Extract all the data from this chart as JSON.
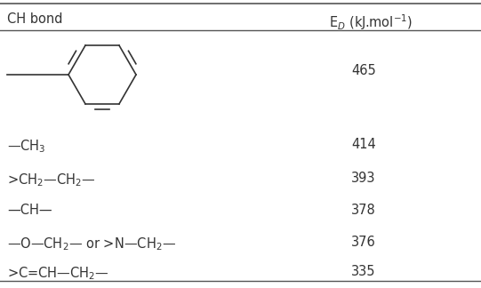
{
  "col1_header": "CH bond",
  "col2_header": "E$_{D}$ (kJ.mol$^{-1}$)",
  "rows": [
    {
      "label": "benzene_img",
      "value": "465"
    },
    {
      "label": "—CH$_{3}$",
      "value": "414"
    },
    {
      "label": ">CH$_{2}$—CH$_{2}$—",
      "value": "393"
    },
    {
      "label": "—CH—",
      "value": "378"
    },
    {
      "label": "—O—CH$_{2}$— or >N—CH$_{2}$—",
      "value": "376"
    },
    {
      "label": ">C=CH—CH$_{2}$—",
      "value": "335"
    }
  ],
  "line_color": "#555555",
  "bg_color": "#ffffff",
  "text_color": "#333333",
  "font_size": 10.5
}
